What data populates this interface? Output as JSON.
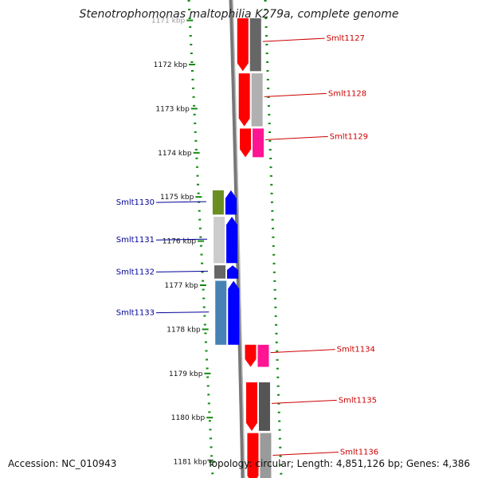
{
  "title": "Stenotrophomonas maltophilia K279a, complete genome",
  "footer": {
    "accession": "Accession: NC_010943",
    "summary": "Topology: circular; Length: 4,851,126 bp; Genes: 4,386"
  },
  "ticks": [
    {
      "label": "1171 kbp",
      "kbp": 1171
    },
    {
      "label": "1172 kbp",
      "kbp": 1172
    },
    {
      "label": "1173 kbp",
      "kbp": 1173
    },
    {
      "label": "1174 kbp",
      "kbp": 1174
    },
    {
      "label": "1175 kbp",
      "kbp": 1175
    },
    {
      "label": "1176 kbp",
      "kbp": 1176
    },
    {
      "label": "1177 kbp",
      "kbp": 1177
    },
    {
      "label": "1178 kbp",
      "kbp": 1178
    },
    {
      "label": "1179 kbp",
      "kbp": 1179
    },
    {
      "label": "1180 kbp",
      "kbp": 1180
    },
    {
      "label": "1181 kbp",
      "kbp": 1181
    }
  ],
  "genes": [
    {
      "name": "Smlt1127",
      "strand": "+",
      "start_kbp": 1170.95,
      "end_kbp": 1172.15,
      "color": "#ff0000",
      "label_color": "#cc0000"
    },
    {
      "name": "Smlt1128",
      "strand": "+",
      "start_kbp": 1172.2,
      "end_kbp": 1173.4,
      "color": "#ff0000",
      "label_color": "#cc0000"
    },
    {
      "name": "Smlt1129",
      "strand": "+",
      "start_kbp": 1173.45,
      "end_kbp": 1174.1,
      "color": "#ff0000",
      "label_color": "#cc0000"
    },
    {
      "name": "Smlt1130",
      "strand": "-",
      "start_kbp": 1174.85,
      "end_kbp": 1175.4,
      "color": "#0000ff",
      "label_color": "#000099"
    },
    {
      "name": "Smlt1131",
      "strand": "-",
      "start_kbp": 1175.45,
      "end_kbp": 1176.5,
      "color": "#0000ff",
      "label_color": "#000099"
    },
    {
      "name": "Smlt1132",
      "strand": "-",
      "start_kbp": 1176.55,
      "end_kbp": 1176.85,
      "color": "#0000ff",
      "label_color": "#000099"
    },
    {
      "name": "Smlt1133",
      "strand": "-",
      "start_kbp": 1176.9,
      "end_kbp": 1178.35,
      "color": "#0000ff",
      "label_color": "#000099"
    },
    {
      "name": "Smlt1134",
      "strand": "+",
      "start_kbp": 1178.35,
      "end_kbp": 1178.85,
      "color": "#ff0000",
      "label_color": "#cc0000"
    },
    {
      "name": "Smlt1135",
      "strand": "+",
      "start_kbp": 1179.2,
      "end_kbp": 1180.3,
      "color": "#ff0000",
      "label_color": "#cc0000"
    },
    {
      "name": "Smlt1136",
      "strand": "+",
      "start_kbp": 1180.35,
      "end_kbp": 1181.5,
      "color": "#ff0000",
      "label_color": "#cc0000"
    }
  ],
  "cog_colors": {
    "Smlt1127": "#666666",
    "Smlt1128": "#b0b0b0",
    "Smlt1129": "#ff1493",
    "Smlt1130": "#6b8e23",
    "Smlt1131": "#cccccc",
    "Smlt1132": "#666666",
    "Smlt1133": "#4682b4",
    "Smlt1134": "#ff1493",
    "Smlt1135": "#555555",
    "Smlt1136": "#9a9a9a"
  }
}
